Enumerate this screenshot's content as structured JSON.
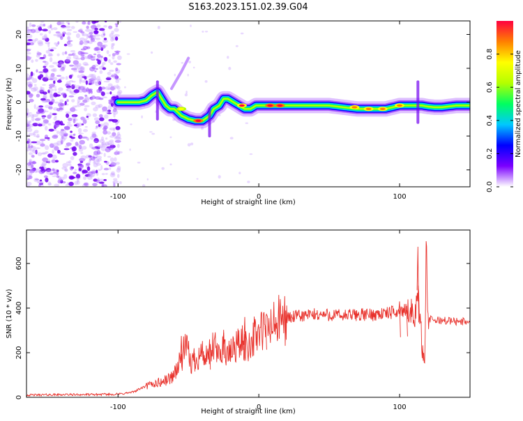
{
  "title": "S163.2023.151.02.39.G04",
  "chart_data": [
    {
      "type": "heatmap",
      "xlabel": "Height of straight line (km)",
      "ylabel": "Frequency (Hz)",
      "xlim": [
        -165,
        150
      ],
      "ylim": [
        -25,
        24
      ],
      "x_ticks": [
        -100,
        0,
        100
      ],
      "y_ticks": [
        -20,
        -10,
        0,
        10,
        20
      ],
      "colorbar": {
        "label": "Normalized spectral amplitude",
        "range": [
          0,
          1
        ],
        "ticks": [
          "0.0",
          "0.2",
          "0.4",
          "0.6",
          "0.8"
        ],
        "colors": [
          "#ffffff",
          "#7b00ff",
          "#0000ff",
          "#00c8ff",
          "#00ff60",
          "#b4ff00",
          "#ffff00",
          "#ff8000",
          "#ff0040"
        ]
      },
      "ridge": {
        "x": [
          -100,
          -95,
          -90,
          -85,
          -80,
          -76,
          -72,
          -69,
          -66,
          -63,
          -60,
          -55,
          -50,
          -45,
          -40,
          -35,
          -32,
          -28,
          -25,
          -22,
          -18,
          -14,
          -10,
          -6,
          -2,
          0,
          5,
          10,
          20,
          30,
          40,
          50,
          60,
          70,
          75,
          80,
          85,
          90,
          95,
          100,
          105,
          108,
          112,
          116,
          120,
          125,
          130,
          140,
          150
        ],
        "y": [
          0,
          0,
          0,
          0,
          0.5,
          2,
          3,
          1,
          -1,
          -2,
          -2,
          -4,
          -5,
          -5.5,
          -5.5,
          -4,
          -2,
          -1,
          1,
          1,
          0,
          -1,
          -2,
          -2,
          -1,
          -1,
          -1,
          -1,
          -1,
          -1,
          -1,
          -1,
          -1.5,
          -2,
          -2,
          -2,
          -2,
          -2,
          -1.5,
          -1,
          -1,
          -1,
          -1,
          -1,
          -1.3,
          -1.5,
          -1.5,
          -1,
          -1
        ]
      },
      "hotspots": [
        {
          "x": 8,
          "y": -1,
          "level": 1.0
        },
        {
          "x": 15,
          "y": -1,
          "level": 1.0
        },
        {
          "x": -43,
          "y": -5.5,
          "level": 1.0
        },
        {
          "x": -12,
          "y": -1,
          "level": 0.95
        },
        {
          "x": -55,
          "y": -2,
          "level": 0.8
        },
        {
          "x": 68,
          "y": -1.5,
          "level": 0.9
        },
        {
          "x": 78,
          "y": -2,
          "level": 0.9
        },
        {
          "x": 88,
          "y": -2,
          "level": 0.85
        },
        {
          "x": 100,
          "y": -1,
          "level": 0.85
        }
      ]
    },
    {
      "type": "line",
      "xlabel": "Height of straight line (km)",
      "ylabel": "SNR (10 * v/v)",
      "xlim": [
        -165,
        150
      ],
      "ylim": [
        0,
        750
      ],
      "x_ticks": [
        -100,
        0,
        100
      ],
      "y_ticks": [
        0,
        200,
        400,
        600
      ],
      "series": [
        {
          "color": "#e8302a",
          "x": [
            -165,
            -140,
            -120,
            -100,
            -90,
            -82,
            -75,
            -68,
            -62,
            -58,
            -55,
            -52,
            -48,
            -44,
            -40,
            -36,
            -32,
            -28,
            -25,
            -22,
            -18,
            -15,
            -12,
            -8,
            -5,
            -2,
            0,
            5,
            10,
            15,
            20,
            25,
            30,
            40,
            50,
            60,
            70,
            80,
            85,
            90,
            95,
            100,
            105,
            108,
            111,
            113,
            115,
            116,
            117,
            118,
            119,
            120,
            125,
            130,
            140,
            150
          ],
          "y": [
            10,
            12,
            12,
            14,
            22,
            45,
            60,
            70,
            90,
            130,
            170,
            230,
            150,
            180,
            200,
            160,
            230,
            180,
            250,
            180,
            220,
            240,
            240,
            230,
            260,
            280,
            290,
            305,
            320,
            345,
            355,
            360,
            365,
            370,
            370,
            365,
            370,
            370,
            375,
            375,
            380,
            385,
            390,
            390,
            360,
            480,
            320,
            230,
            170,
            200,
            750,
            350,
            345,
            345,
            340,
            340
          ]
        }
      ],
      "spikes": [
        {
          "x": -55,
          "y": 275
        },
        {
          "x": -46,
          "y": 220
        },
        {
          "x": -35,
          "y": 260
        },
        {
          "x": -25,
          "y": 290
        },
        {
          "x": -10,
          "y": 360
        },
        {
          "x": 5,
          "y": 320
        },
        {
          "x": 100,
          "y": 430
        },
        {
          "x": 105,
          "y": 410
        },
        {
          "x": 113,
          "y": 675
        }
      ]
    }
  ]
}
